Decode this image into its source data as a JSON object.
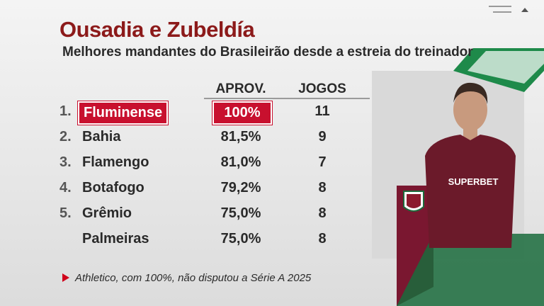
{
  "header": {
    "title": "Ousadia e Zubeldía",
    "subtitle": "Melhores mandantes do Brasileirão desde a estreia do treinador"
  },
  "table": {
    "columns": [
      "APROV.",
      "JOGOS"
    ],
    "rows": [
      {
        "rank": "1.",
        "team": "Fluminense",
        "aprov": "100%",
        "jogos": "11",
        "highlight": true
      },
      {
        "rank": "2.",
        "team": "Bahia",
        "aprov": "81,5%",
        "jogos": "9"
      },
      {
        "rank": "3.",
        "team": "Flamengo",
        "aprov": "81,0%",
        "jogos": "7"
      },
      {
        "rank": "4.",
        "team": "Botafogo",
        "aprov": "79,2%",
        "jogos": "8"
      },
      {
        "rank": "5.",
        "team": "Grêmio",
        "aprov": "75,0%",
        "jogos": "8"
      },
      {
        "team": "Palmeiras",
        "aprov": "75,0%",
        "jogos": "8"
      }
    ]
  },
  "footnote": "Athletico, com 100%, não disputou a Série A 2025",
  "image": {
    "shirt_text": "SUPERBET"
  }
}
